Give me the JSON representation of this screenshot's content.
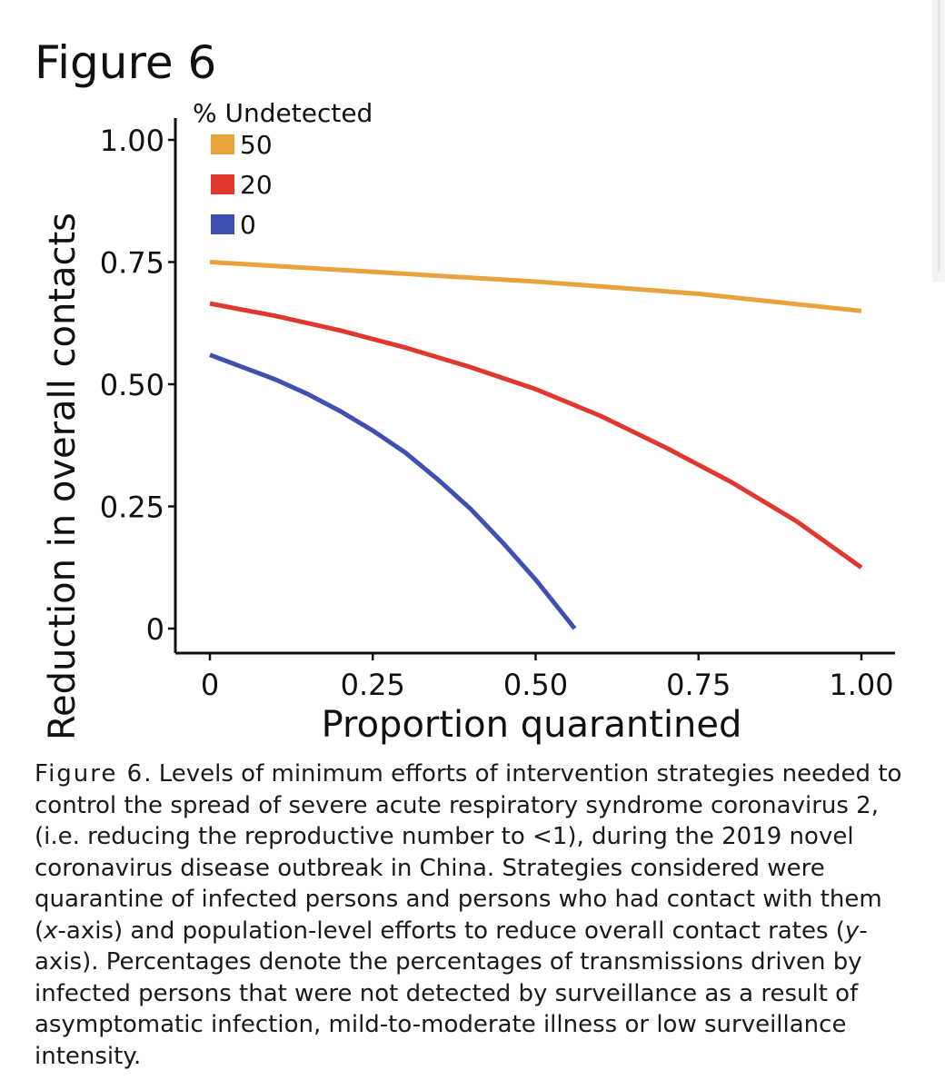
{
  "page": {
    "title": "Figure 6"
  },
  "chart_data": {
    "type": "line",
    "title": "",
    "xlabel": "Proportion quarantined",
    "ylabel": "Reduction in overall contacts",
    "xlim": [
      0,
      1
    ],
    "ylim": [
      0,
      1
    ],
    "x_ticks": [
      0,
      0.25,
      0.5,
      0.75,
      1.0
    ],
    "x_tick_labels": [
      "0",
      "0.25",
      "0.50",
      "0.75",
      "1.00"
    ],
    "y_ticks": [
      0,
      0.25,
      0.5,
      0.75,
      1.0
    ],
    "y_tick_labels": [
      "0",
      "0.25",
      "0.50",
      "0.75",
      "1.00"
    ],
    "grid": false,
    "legend": {
      "title": "% Undetected",
      "position": "top-left"
    },
    "series": [
      {
        "name": "50",
        "color": "#E8A33D",
        "x": [
          0,
          0.25,
          0.5,
          0.75,
          1.0
        ],
        "y": [
          0.75,
          0.73,
          0.71,
          0.685,
          0.65
        ]
      },
      {
        "name": "20",
        "color": "#E0382F",
        "x": [
          0,
          0.1,
          0.2,
          0.3,
          0.4,
          0.5,
          0.6,
          0.7,
          0.8,
          0.9,
          1.0
        ],
        "y": [
          0.665,
          0.64,
          0.61,
          0.575,
          0.535,
          0.49,
          0.435,
          0.37,
          0.3,
          0.22,
          0.125
        ]
      },
      {
        "name": "0",
        "color": "#3F51B0",
        "x": [
          0,
          0.05,
          0.1,
          0.15,
          0.2,
          0.25,
          0.3,
          0.35,
          0.4,
          0.45,
          0.5,
          0.56
        ],
        "y": [
          0.56,
          0.535,
          0.51,
          0.48,
          0.445,
          0.405,
          0.36,
          0.305,
          0.245,
          0.175,
          0.1,
          0.0
        ]
      }
    ]
  },
  "caption": {
    "label": "Figure 6",
    "p1": ". Levels of minimum efforts of intervention strategies needed to control the spread of severe acute respiratory syndrome coronavirus 2, (i.e. reducing the reproductive number to <1), during the 2019 novel coronavirus disease outbreak in China. Strategies considered were quarantine of infected persons and persons who had contact with them (",
    "x_italic": "x",
    "p2": "-axis) and population-level efforts to reduce overall contact rates (",
    "y_italic": "y",
    "p3": "-axis). Percentages denote the percentages of transmissions driven by infected persons that were not detected by surveillance as a result of asymptomatic infection, mild-to-moderate illness or low surveillance intensity."
  }
}
